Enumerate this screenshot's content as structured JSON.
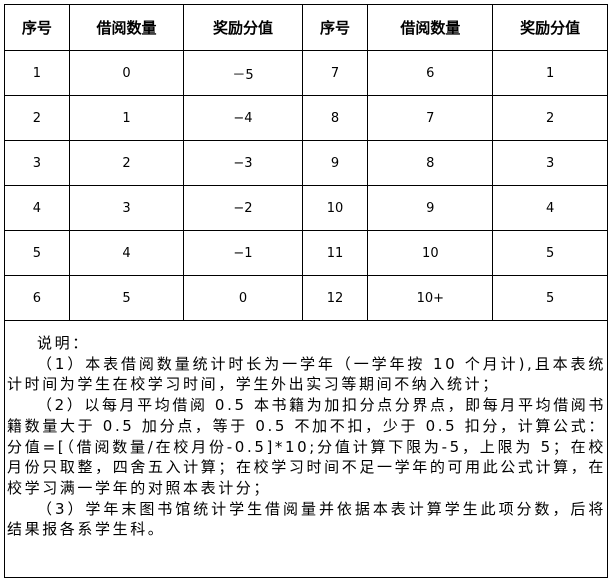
{
  "table": {
    "headers": [
      "序号",
      "借阅数量",
      "奖励分值",
      "序号",
      "借阅数量",
      "奖励分值"
    ],
    "rows": [
      [
        "1",
        "0",
        "－5",
        "7",
        "6",
        "1"
      ],
      [
        "2",
        "1",
        "−4",
        "8",
        "7",
        "2"
      ],
      [
        "3",
        "2",
        "−3",
        "9",
        "8",
        "3"
      ],
      [
        "4",
        "3",
        "−2",
        "10",
        "9",
        "4"
      ],
      [
        "5",
        "4",
        "−1",
        "11",
        "10",
        "5"
      ],
      [
        "6",
        "5",
        "0",
        "12",
        "10+",
        "5"
      ]
    ]
  },
  "notes": {
    "title": "说明：",
    "items": [
      "（1）本表借阅数量统计时长为一学年（一学年按 10 个月计),且本表统计时间为学生在校学习时间，学生外出实习等期间不纳入统计；",
      "（2）以每月平均借阅 0.5 本书籍为加扣分点分界点，即每月平均借阅书籍数量大于 0.5 加分点，等于 0.5 不加不扣，少于 0.5 扣分，计算公式：分值=[（借阅数量/在校月份-0.5]*10;分值计算下限为-5，上限为 5；在校月份只取整，四舍五入计算；在校学习时间不足一学年的可用此公式计算，在校学习满一学年的对照本表计分；",
      "（3）学年末图书馆统计学生借阅量并依据本表计算学生此项分数，后将结果报各系学生科。"
    ]
  }
}
